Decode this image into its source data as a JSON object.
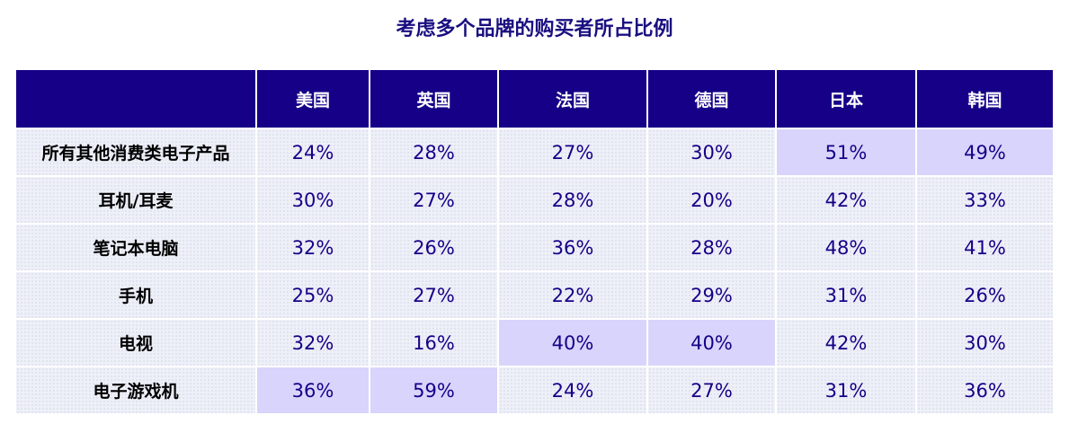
{
  "chart_data": {
    "type": "table",
    "title": "考虑多个品牌的购买者所占比例",
    "columns": [
      "美国",
      "英国",
      "法国",
      "德国",
      "日本",
      "韩国"
    ],
    "rows": [
      {
        "label": "所有其他消费类电子产品",
        "values": [
          "24%",
          "28%",
          "27%",
          "30%",
          "51%",
          "49%"
        ],
        "highlight": [
          false,
          false,
          false,
          false,
          true,
          true
        ]
      },
      {
        "label": "耳机/耳麦",
        "values": [
          "30%",
          "27%",
          "28%",
          "20%",
          "42%",
          "33%"
        ],
        "highlight": [
          false,
          false,
          false,
          false,
          false,
          false
        ]
      },
      {
        "label": "笔记本电脑",
        "values": [
          "32%",
          "26%",
          "36%",
          "28%",
          "48%",
          "41%"
        ],
        "highlight": [
          false,
          false,
          false,
          false,
          false,
          false
        ]
      },
      {
        "label": "手机",
        "values": [
          "25%",
          "27%",
          "22%",
          "29%",
          "31%",
          "26%"
        ],
        "highlight": [
          false,
          false,
          false,
          false,
          false,
          false
        ]
      },
      {
        "label": "电视",
        "values": [
          "32%",
          "16%",
          "40%",
          "40%",
          "42%",
          "30%"
        ],
        "highlight": [
          false,
          false,
          true,
          true,
          false,
          false
        ]
      },
      {
        "label": "电子游戏机",
        "values": [
          "36%",
          "59%",
          "24%",
          "27%",
          "31%",
          "36%"
        ],
        "highlight": [
          true,
          true,
          false,
          false,
          false,
          false
        ]
      }
    ],
    "colors": {
      "header_bg": "#150087",
      "header_text": "#ffffff",
      "value_text": "#150087",
      "cell_bg": "#eef0f8",
      "highlight_bg": "#d9d4fb"
    }
  }
}
